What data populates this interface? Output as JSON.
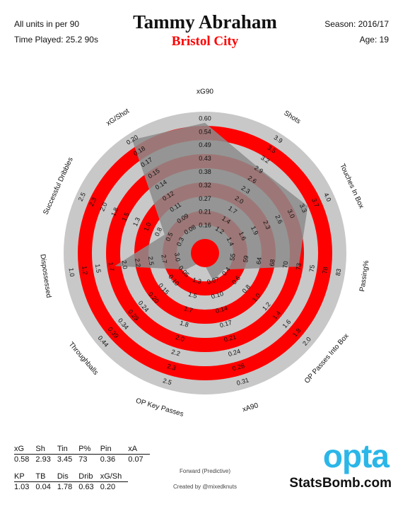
{
  "header": {
    "units": "All units in per 90",
    "time_played": "Time Played: 25.2 90s",
    "player": "Tammy Abraham",
    "team": "Bristol City",
    "season": "Season: 2016/17",
    "age": "Age: 19"
  },
  "footer": {
    "role": "Forward (Predictive)",
    "credit": "Created by @mixedknuts",
    "opta_logo": "opta",
    "statsbomb_logo": "StatsBomb.com"
  },
  "summary_table": {
    "row1_headers": [
      "xG",
      "Sh",
      "Tin",
      "P%",
      "Pin",
      "xA"
    ],
    "row1_values": [
      "0.58",
      "2.93",
      "3.45",
      "73",
      "0.36",
      "0.07"
    ],
    "row2_headers": [
      "KP",
      "TB",
      "Dis",
      "Drib",
      "xG/Sh"
    ],
    "row2_values": [
      "1.03",
      "0.04",
      "1.78",
      "0.63",
      "0.20"
    ]
  },
  "colors": {
    "ring_gray": "#c8c8c8",
    "ring_red": "#ff0000",
    "polygon": "#8c8c8c",
    "opta_blue": "#2bb6e8",
    "team_red": "#ff0000"
  },
  "chart_data": {
    "type": "radar",
    "axes": [
      {
        "label": "xG90",
        "ticks": [
          "0.16",
          "0.21",
          "0.27",
          "0.32",
          "0.38",
          "0.43",
          "0.49",
          "0.54",
          "0.60"
        ],
        "value": 0.58
      },
      {
        "label": "Shots",
        "ticks": [
          "1.2",
          "1.4",
          "1.7",
          "2.0",
          "2.3",
          "2.6",
          "2.9",
          "3.2",
          "3.5",
          "3.9"
        ],
        "value": 2.93
      },
      {
        "label": "Touches In Box",
        "ticks": [
          "1.4",
          "1.6",
          "1.9",
          "2.3",
          "2.6",
          "3.0",
          "3.3",
          "3.7",
          "4.0"
        ],
        "value": 3.45
      },
      {
        "label": "Passing%",
        "ticks": [
          "55",
          "59",
          "64",
          "68",
          "70",
          "73",
          "75",
          "78",
          "83"
        ],
        "value": 73
      },
      {
        "label": "OP Passes Into Box",
        "ticks": [
          "0.4",
          "0.6",
          "0.8",
          "1.0",
          "1.2",
          "1.4",
          "1.6",
          "1.8",
          "2.0"
        ],
        "value": 0.36
      },
      {
        "label": "xA90",
        "ticks": [
          "0.07",
          "0.10",
          "0.14",
          "0.17",
          "0.21",
          "0.24",
          "0.28",
          "0.31"
        ],
        "value": 0.07
      },
      {
        "label": "OP Key Passes",
        "ticks": [
          "1.3",
          "1.5",
          "1.7",
          "1.8",
          "2.0",
          "2.2",
          "2.3",
          "2.5"
        ],
        "value": 1.03
      },
      {
        "label": "Throughballs",
        "ticks": [
          "0.05",
          "0.10",
          "0.15",
          "0.20",
          "0.24",
          "0.29",
          "0.34",
          "0.39",
          "0.44"
        ],
        "value": 0.04
      },
      {
        "label": "Dispossessed",
        "ticks": [
          "3.0",
          "2.7",
          "2.5",
          "2.2",
          "2.0",
          "1.7",
          "1.5",
          "1.2",
          "1.0"
        ],
        "value": 1.78
      },
      {
        "label": "Successful Dribbles",
        "ticks": [
          "0.3",
          "0.5",
          "0.8",
          "1.0",
          "1.3",
          "1.5",
          "1.8",
          "2.0",
          "2.3",
          "2.5"
        ],
        "value": 0.63
      },
      {
        "label": "xG/Shot",
        "ticks": [
          "0.08",
          "0.09",
          "0.11",
          "0.12",
          "0.14",
          "0.15",
          "0.17",
          "0.18",
          "0.20"
        ],
        "value": 0.2
      }
    ]
  }
}
